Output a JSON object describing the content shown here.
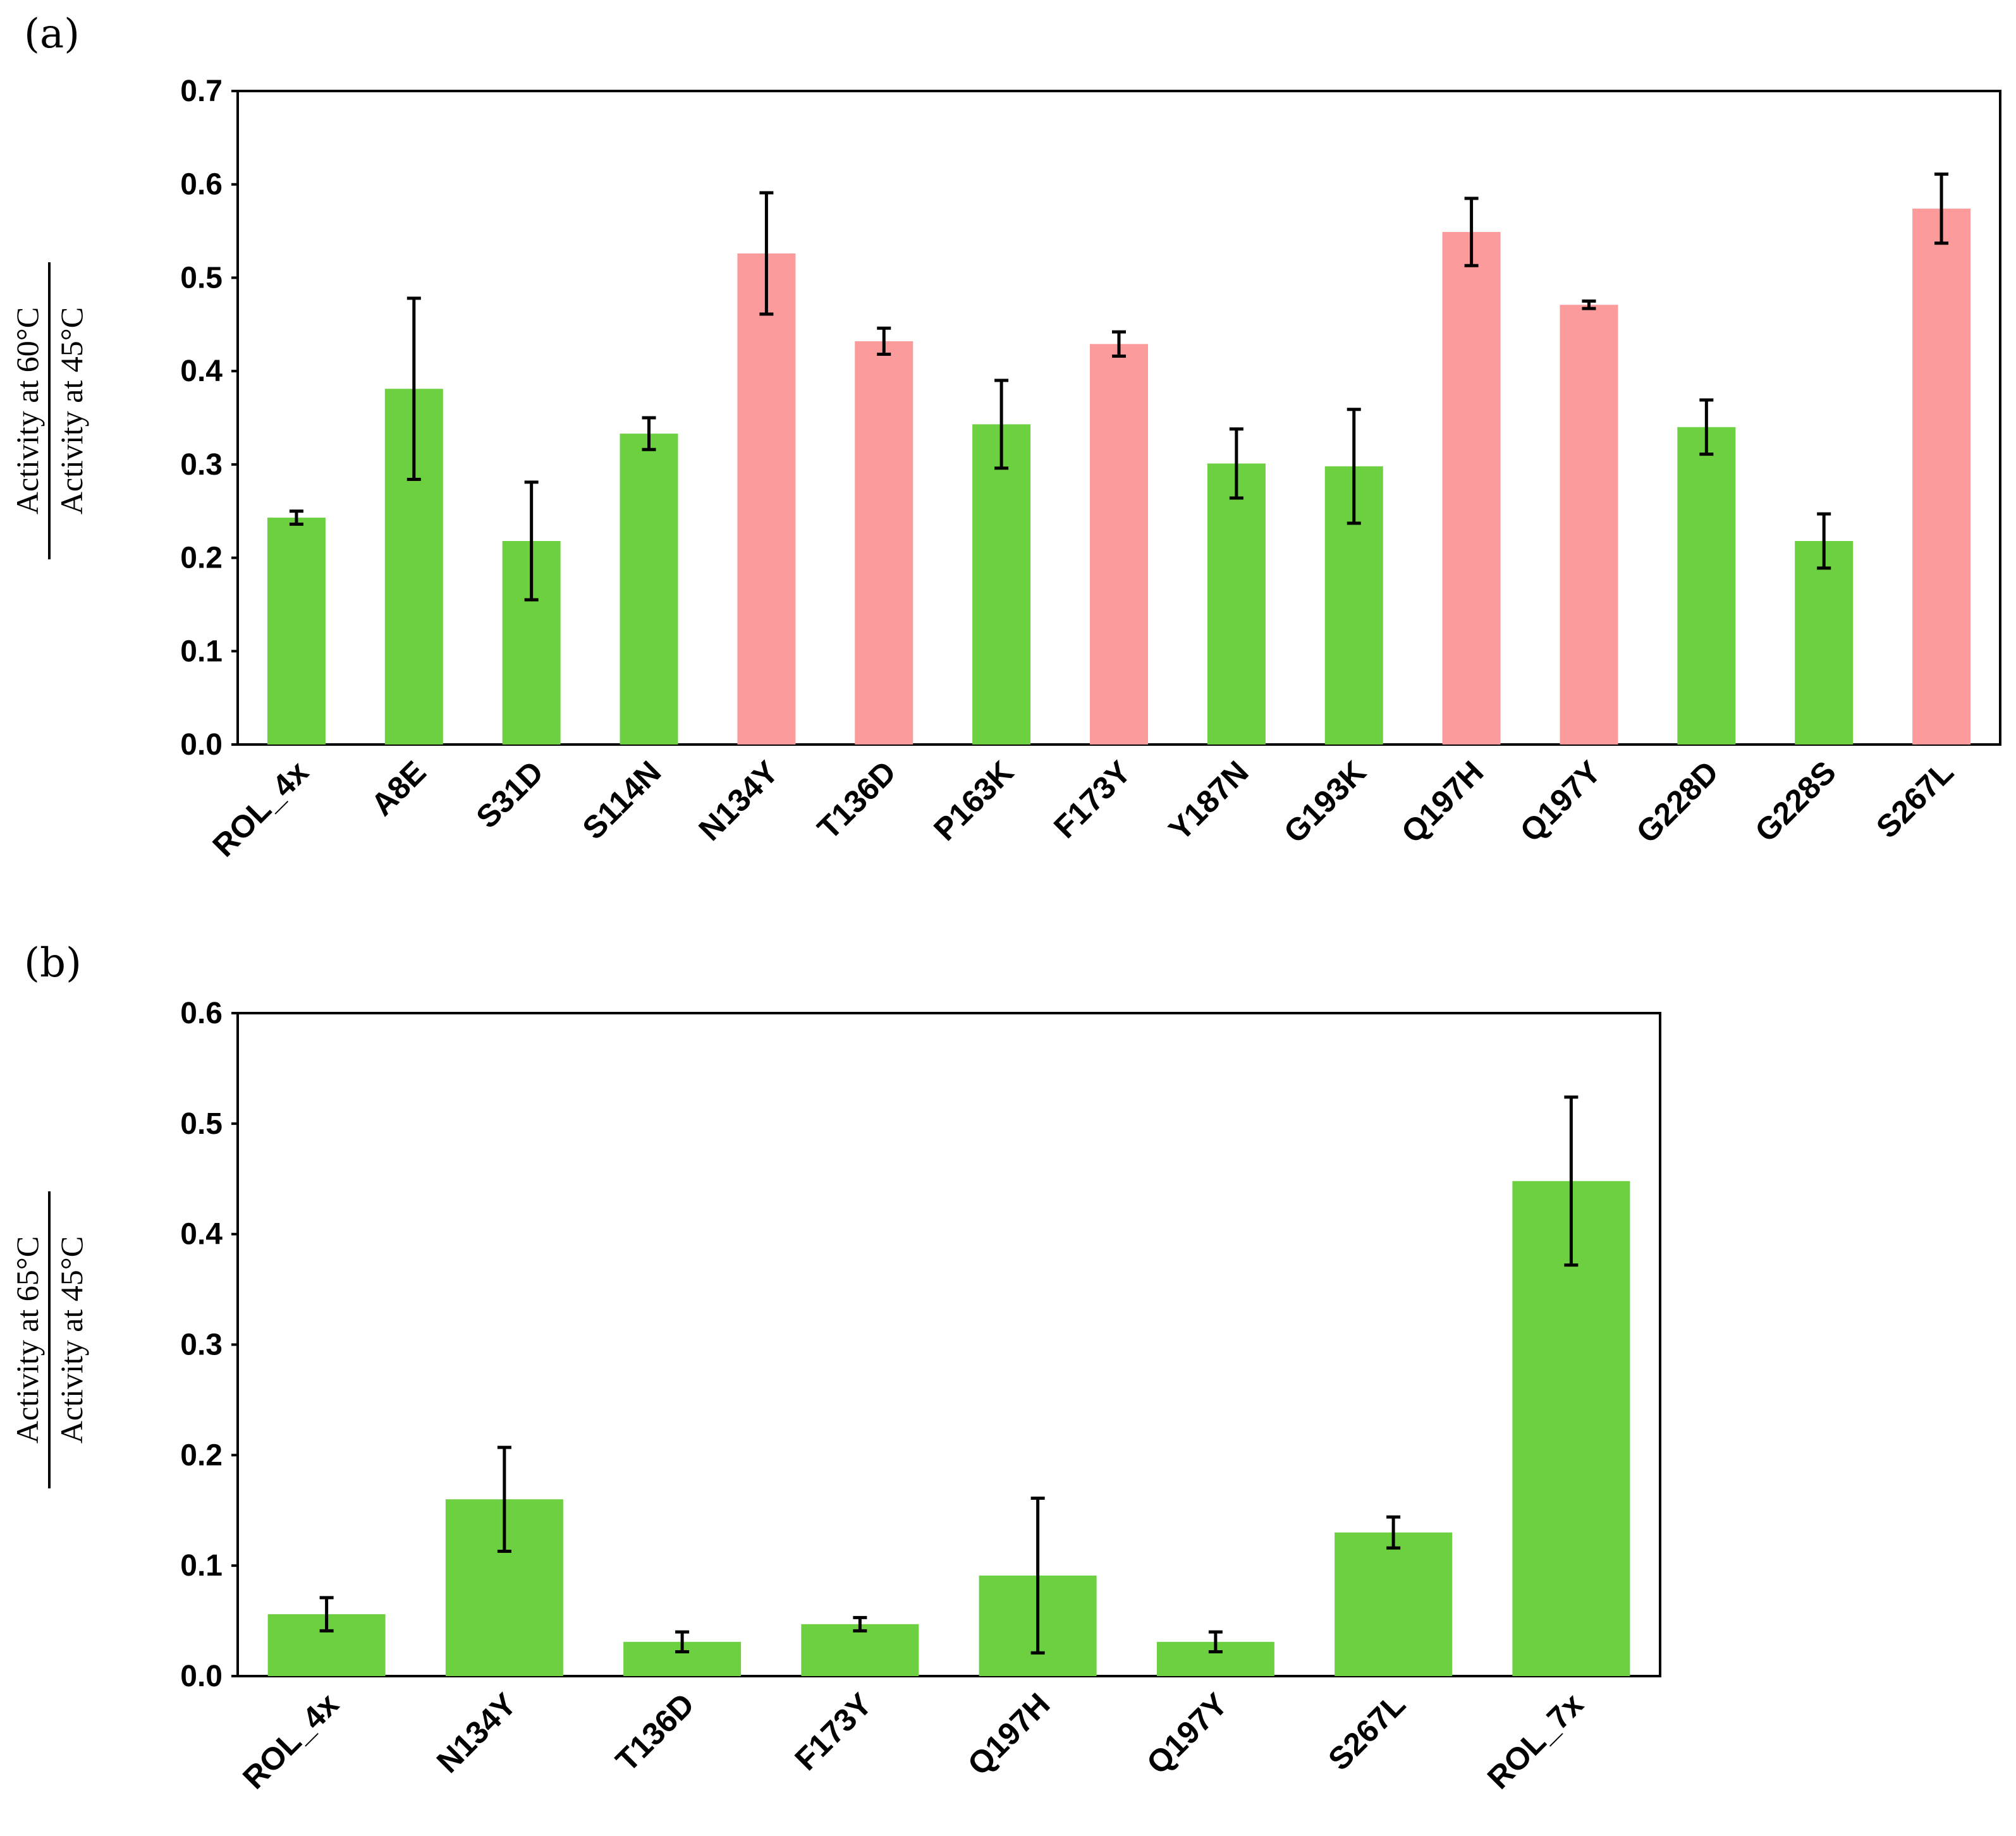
{
  "chart_data": [
    {
      "type": "bar",
      "panel": "(a)",
      "categories": [
        "ROL_4x",
        "A8E",
        "S31D",
        "S114N",
        "N134Y",
        "T136D",
        "P163K",
        "F173Y",
        "Y187N",
        "G193K",
        "Q197H",
        "Q197Y",
        "G228D",
        "G228S",
        "S267L"
      ],
      "values": [
        0.243,
        0.381,
        0.218,
        0.333,
        0.526,
        0.432,
        0.343,
        0.429,
        0.301,
        0.298,
        0.549,
        0.471,
        0.34,
        0.218,
        0.574
      ],
      "errors": [
        0.007,
        0.097,
        0.063,
        0.017,
        0.065,
        0.014,
        0.047,
        0.013,
        0.037,
        0.061,
        0.036,
        0.004,
        0.029,
        0.029,
        0.037
      ],
      "colors": [
        "#6cd040",
        "#6cd040",
        "#6cd040",
        "#6cd040",
        "#fc9b9b",
        "#fc9b9b",
        "#6cd040",
        "#fc9b9b",
        "#6cd040",
        "#6cd040",
        "#fc9b9b",
        "#fc9b9b",
        "#6cd040",
        "#6cd040",
        "#fc9b9b"
      ],
      "ylabel_numerator": "Activity at 60°C",
      "ylabel_denominator": "Activity at 45°C",
      "ylim": [
        0,
        0.7
      ],
      "yticks": [
        "0.0",
        "0.1",
        "0.2",
        "0.3",
        "0.4",
        "0.5",
        "0.6",
        "0.7"
      ],
      "grid": false
    },
    {
      "type": "bar",
      "panel": "(b)",
      "categories": [
        "ROL_4x",
        "N134Y",
        "T136D",
        "F173Y",
        "Q197H",
        "Q197Y",
        "S267L",
        "ROL_7x"
      ],
      "values": [
        0.056,
        0.16,
        0.031,
        0.047,
        0.091,
        0.031,
        0.13,
        0.448
      ],
      "errors": [
        0.015,
        0.047,
        0.009,
        0.006,
        0.07,
        0.009,
        0.014,
        0.076
      ],
      "colors": [
        "#6cd040",
        "#6cd040",
        "#6cd040",
        "#6cd040",
        "#6cd040",
        "#6cd040",
        "#6cd040",
        "#6cd040"
      ],
      "ylabel_numerator": "Activity at 65°C",
      "ylabel_denominator": "Activity at 45°C",
      "ylim": [
        0,
        0.6
      ],
      "yticks": [
        "0.0",
        "0.1",
        "0.2",
        "0.3",
        "0.4",
        "0.5",
        "0.6"
      ],
      "grid": false
    }
  ]
}
